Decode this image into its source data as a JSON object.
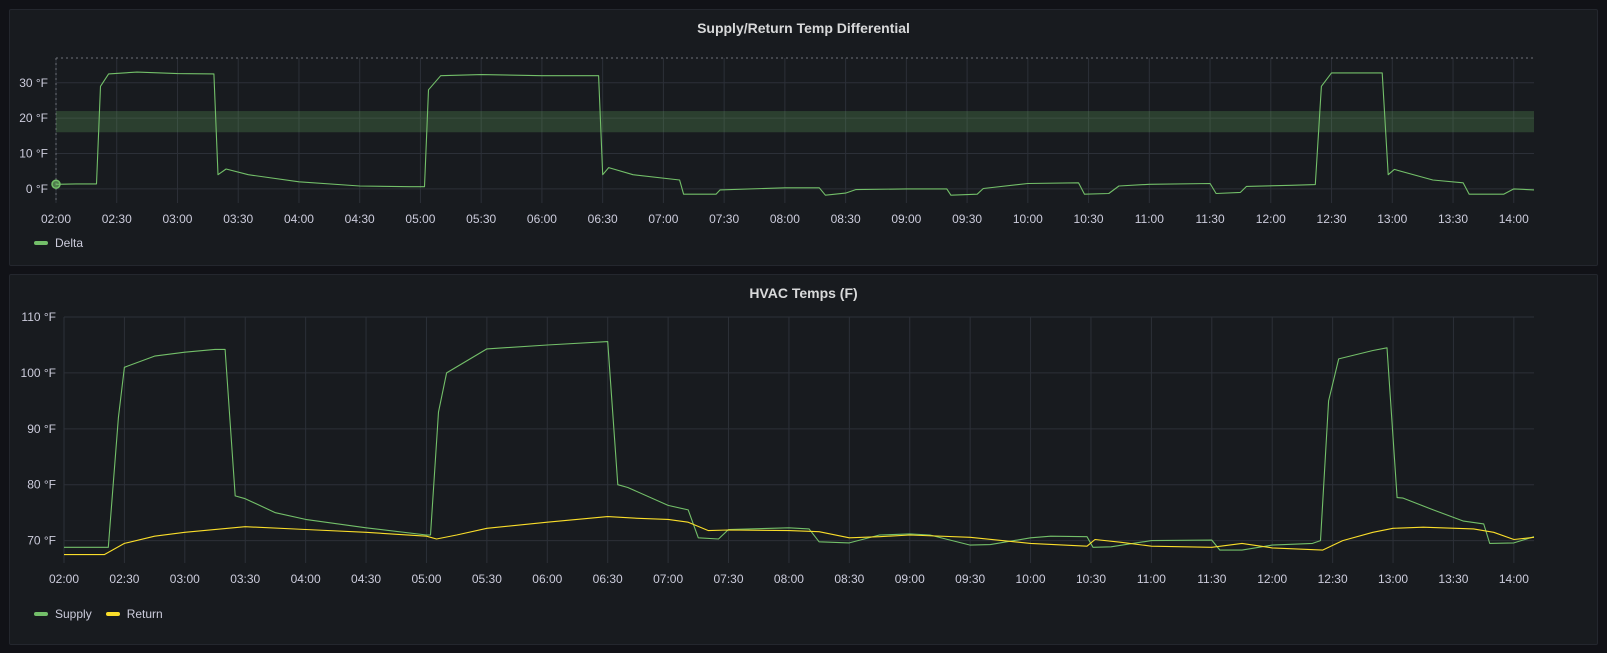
{
  "colors": {
    "delta": "#73bf69",
    "supply": "#73bf69",
    "return": "#fade2a",
    "threshold_band": "#73bf69"
  },
  "chart_data": [
    {
      "type": "line",
      "title": "Supply/Return Temp Differential",
      "x_ticks": [
        "02:00",
        "02:30",
        "03:00",
        "03:30",
        "04:00",
        "04:30",
        "05:00",
        "05:30",
        "06:00",
        "06:30",
        "07:00",
        "07:30",
        "08:00",
        "08:30",
        "09:00",
        "09:30",
        "10:00",
        "10:30",
        "11:00",
        "11:30",
        "12:00",
        "12:30",
        "13:00",
        "13:30",
        "14:00"
      ],
      "xlim": [
        "02:00",
        "14:10"
      ],
      "y_ticks": [
        0,
        10,
        20,
        30
      ],
      "y_tick_labels": [
        "0 °F",
        "10 °F",
        "20 °F",
        "30 °F"
      ],
      "ylim": [
        -4,
        37
      ],
      "threshold_band": [
        16,
        22
      ],
      "legend": "bottom-left",
      "series": [
        {
          "name": "Delta",
          "color": "#73bf69",
          "points": [
            [
              "02:00",
              1.3
            ],
            [
              "02:10",
              1.4
            ],
            [
              "02:20",
              1.4
            ],
            [
              "02:22",
              29
            ],
            [
              "02:26",
              32.5
            ],
            [
              "02:40",
              33
            ],
            [
              "03:00",
              32.6
            ],
            [
              "03:18",
              32.5
            ],
            [
              "03:20",
              4
            ],
            [
              "03:24",
              5.6
            ],
            [
              "03:35",
              4
            ],
            [
              "04:00",
              2
            ],
            [
              "04:30",
              0.8
            ],
            [
              "04:55",
              0.6
            ],
            [
              "05:02",
              0.6
            ],
            [
              "05:04",
              28
            ],
            [
              "05:10",
              32
            ],
            [
              "05:30",
              32.3
            ],
            [
              "06:00",
              32
            ],
            [
              "06:28",
              32
            ],
            [
              "06:30",
              4
            ],
            [
              "06:33",
              6
            ],
            [
              "06:45",
              4
            ],
            [
              "07:08",
              2.5
            ],
            [
              "07:10",
              -1.5
            ],
            [
              "07:26",
              -1.5
            ],
            [
              "07:28",
              -0.3
            ],
            [
              "08:00",
              0.3
            ],
            [
              "08:17",
              0.3
            ],
            [
              "08:20",
              -1.8
            ],
            [
              "08:30",
              -1.2
            ],
            [
              "08:35",
              -0.2
            ],
            [
              "09:00",
              0
            ],
            [
              "09:20",
              0
            ],
            [
              "09:22",
              -1.8
            ],
            [
              "09:35",
              -1.5
            ],
            [
              "09:38",
              0.1
            ],
            [
              "10:00",
              1.5
            ],
            [
              "10:25",
              1.7
            ],
            [
              "10:28",
              -1.5
            ],
            [
              "10:40",
              -1.3
            ],
            [
              "10:45",
              0.8
            ],
            [
              "11:00",
              1.3
            ],
            [
              "11:30",
              1.5
            ],
            [
              "11:33",
              -1.3
            ],
            [
              "11:45",
              -1
            ],
            [
              "11:48",
              0.7
            ],
            [
              "12:10",
              1
            ],
            [
              "12:22",
              1.2
            ],
            [
              "12:25",
              29
            ],
            [
              "12:30",
              32.8
            ],
            [
              "12:55",
              32.8
            ],
            [
              "12:58",
              4
            ],
            [
              "13:01",
              5.5
            ],
            [
              "13:20",
              2.5
            ],
            [
              "13:35",
              1.7
            ],
            [
              "13:38",
              -1.5
            ],
            [
              "13:55",
              -1.5
            ],
            [
              "14:00",
              0
            ],
            [
              "14:10",
              -0.3
            ]
          ]
        }
      ]
    },
    {
      "type": "line",
      "title": "HVAC Temps (F)",
      "x_ticks": [
        "02:00",
        "02:30",
        "03:00",
        "03:30",
        "04:00",
        "04:30",
        "05:00",
        "05:30",
        "06:00",
        "06:30",
        "07:00",
        "07:30",
        "08:00",
        "08:30",
        "09:00",
        "09:30",
        "10:00",
        "10:30",
        "11:00",
        "11:30",
        "12:00",
        "12:30",
        "13:00",
        "13:30",
        "14:00"
      ],
      "xlim": [
        "02:00",
        "14:10"
      ],
      "y_ticks": [
        70,
        80,
        90,
        100,
        110
      ],
      "y_tick_labels": [
        "70 °F",
        "80 °F",
        "90 °F",
        "100 °F",
        "110 °F"
      ],
      "ylim": [
        66,
        110
      ],
      "legend": "bottom-left",
      "series": [
        {
          "name": "Supply",
          "color": "#73bf69",
          "points": [
            [
              "02:00",
              68.8
            ],
            [
              "02:22",
              68.8
            ],
            [
              "02:27",
              92
            ],
            [
              "02:30",
              101
            ],
            [
              "02:45",
              103
            ],
            [
              "03:00",
              103.7
            ],
            [
              "03:15",
              104.2
            ],
            [
              "03:20",
              104.2
            ],
            [
              "03:25",
              78
            ],
            [
              "03:30",
              77.5
            ],
            [
              "03:45",
              75
            ],
            [
              "04:00",
              73.8
            ],
            [
              "04:30",
              72.3
            ],
            [
              "05:00",
              71
            ],
            [
              "05:02",
              71
            ],
            [
              "05:06",
              93
            ],
            [
              "05:10",
              100
            ],
            [
              "05:30",
              104.3
            ],
            [
              "06:00",
              105
            ],
            [
              "06:30",
              105.6
            ],
            [
              "06:35",
              80
            ],
            [
              "06:40",
              79.5
            ],
            [
              "07:00",
              76.3
            ],
            [
              "07:10",
              75.5
            ],
            [
              "07:15",
              70.5
            ],
            [
              "07:25",
              70.3
            ],
            [
              "07:30",
              72
            ],
            [
              "08:00",
              72.3
            ],
            [
              "08:10",
              72.1
            ],
            [
              "08:15",
              69.8
            ],
            [
              "08:30",
              69.6
            ],
            [
              "08:45",
              71
            ],
            [
              "09:00",
              71.2
            ],
            [
              "09:10",
              71
            ],
            [
              "09:30",
              69.2
            ],
            [
              "09:40",
              69.3
            ],
            [
              "10:00",
              70.5
            ],
            [
              "10:10",
              70.8
            ],
            [
              "10:28",
              70.7
            ],
            [
              "10:31",
              68.8
            ],
            [
              "10:40",
              68.9
            ],
            [
              "11:00",
              70
            ],
            [
              "11:30",
              70.1
            ],
            [
              "11:34",
              68.3
            ],
            [
              "11:45",
              68.3
            ],
            [
              "12:00",
              69.2
            ],
            [
              "12:20",
              69.5
            ],
            [
              "12:24",
              70
            ],
            [
              "12:28",
              95
            ],
            [
              "12:33",
              102.5
            ],
            [
              "12:50",
              104
            ],
            [
              "12:57",
              104.5
            ],
            [
              "13:02",
              77.7
            ],
            [
              "13:05",
              77.6
            ],
            [
              "13:20",
              75.5
            ],
            [
              "13:35",
              73.5
            ],
            [
              "13:45",
              73
            ],
            [
              "13:48",
              69.5
            ],
            [
              "14:00",
              69.6
            ],
            [
              "14:10",
              70.7
            ]
          ]
        },
        {
          "name": "Return",
          "color": "#fade2a",
          "points": [
            [
              "02:00",
              67.5
            ],
            [
              "02:20",
              67.5
            ],
            [
              "02:30",
              69.5
            ],
            [
              "02:45",
              70.8
            ],
            [
              "03:00",
              71.5
            ],
            [
              "03:30",
              72.5
            ],
            [
              "04:00",
              72
            ],
            [
              "04:30",
              71.5
            ],
            [
              "05:00",
              70.8
            ],
            [
              "05:05",
              70.3
            ],
            [
              "05:15",
              71
            ],
            [
              "05:30",
              72.2
            ],
            [
              "06:00",
              73.3
            ],
            [
              "06:30",
              74.3
            ],
            [
              "06:45",
              74
            ],
            [
              "07:00",
              73.8
            ],
            [
              "07:10",
              73.3
            ],
            [
              "07:20",
              71.8
            ],
            [
              "07:30",
              71.9
            ],
            [
              "08:00",
              71.8
            ],
            [
              "08:15",
              71.6
            ],
            [
              "08:30",
              70.5
            ],
            [
              "08:45",
              70.7
            ],
            [
              "09:00",
              71
            ],
            [
              "09:30",
              70.6
            ],
            [
              "10:00",
              69.5
            ],
            [
              "10:28",
              69
            ],
            [
              "10:32",
              70.2
            ],
            [
              "10:45",
              69.7
            ],
            [
              "11:00",
              69
            ],
            [
              "11:30",
              68.8
            ],
            [
              "11:45",
              69.5
            ],
            [
              "12:00",
              68.7
            ],
            [
              "12:25",
              68.3
            ],
            [
              "12:35",
              70
            ],
            [
              "12:50",
              71.5
            ],
            [
              "13:00",
              72.2
            ],
            [
              "13:15",
              72.4
            ],
            [
              "13:40",
              72.1
            ],
            [
              "13:50",
              71.5
            ],
            [
              "14:00",
              70.2
            ],
            [
              "14:10",
              70.6
            ]
          ]
        }
      ]
    }
  ]
}
